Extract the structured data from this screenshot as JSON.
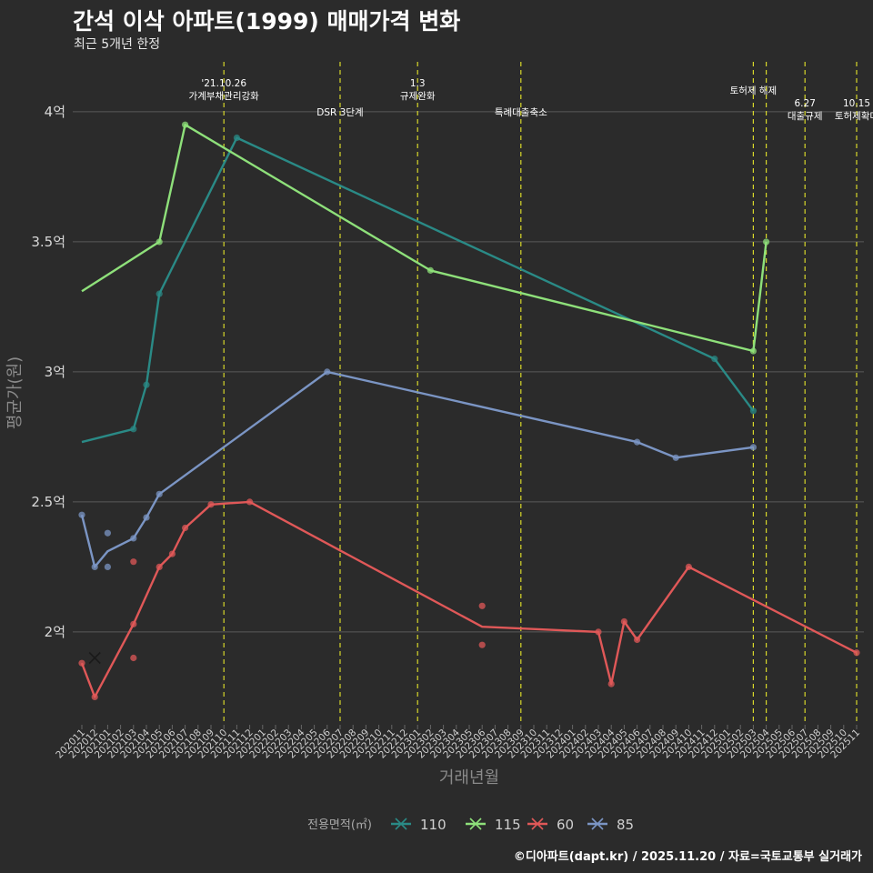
{
  "header": {
    "title": "간석 이삭 아파트(1999) 매매가격 변화",
    "subtitle": "최근 5개년 한정",
    "credit": "©디아파트(dapt.kr) / 2025.11.20 / 자료=국토교통부 실거래가"
  },
  "chart_data": {
    "type": "line",
    "title": "간석 이삭 아파트(1999) 매매가격 변화",
    "subtitle": "최근 5개년 한정",
    "xlabel": "거래년월",
    "ylabel": "평균가(원)",
    "ylim": [
      1.65,
      4.22
    ],
    "y_ticks": [
      {
        "value": 2.0,
        "label": "2억"
      },
      {
        "value": 2.5,
        "label": "2.5억"
      },
      {
        "value": 3.0,
        "label": "3억"
      },
      {
        "value": 3.5,
        "label": "3.5억"
      },
      {
        "value": 4.0,
        "label": "4억"
      }
    ],
    "x_start": "202011",
    "x_count": 61,
    "x_tick_labels": [
      "202011",
      "202012",
      "202101",
      "202102",
      "202103",
      "202104",
      "202105",
      "202106",
      "202107",
      "202108",
      "202109",
      "202110",
      "202111",
      "202112",
      "202201",
      "202202",
      "202203",
      "202204",
      "202205",
      "202206",
      "202207",
      "202208",
      "202209",
      "202210",
      "202211",
      "202212",
      "202301",
      "202302",
      "202303",
      "202304",
      "202305",
      "202306",
      "202307",
      "202308",
      "202309",
      "202310",
      "202311",
      "202312",
      "202401",
      "202402",
      "202403",
      "202404",
      "202405",
      "202406",
      "202407",
      "202408",
      "202409",
      "202410",
      "202411",
      "202412",
      "202501",
      "202502",
      "202503",
      "202504",
      "202505",
      "202506",
      "202507",
      "202508",
      "202509",
      "202510",
      "202511"
    ],
    "legend": {
      "title": "전용면적(㎡)",
      "position": "bottom",
      "items": [
        {
          "name": "110",
          "color": "#2a8a86"
        },
        {
          "name": "115",
          "color": "#8ee07a"
        },
        {
          "name": "60",
          "color": "#e05858"
        },
        {
          "name": "85",
          "color": "#7b95c4"
        }
      ]
    },
    "series": [
      {
        "name": "110",
        "color": "#2a8a86",
        "line": [
          [
            0,
            2.73
          ],
          [
            4,
            2.78
          ],
          [
            5,
            2.95
          ],
          [
            6,
            3.3
          ],
          [
            12,
            3.9
          ],
          [
            49,
            3.05
          ],
          [
            52,
            2.85
          ]
        ],
        "points": [
          [
            4,
            2.78
          ],
          [
            5,
            2.95
          ],
          [
            6,
            3.3
          ],
          [
            12,
            3.9
          ],
          [
            49,
            3.05
          ],
          [
            52,
            2.85
          ]
        ]
      },
      {
        "name": "115",
        "color": "#8ee07a",
        "line": [
          [
            0,
            3.31
          ],
          [
            6,
            3.5
          ],
          [
            8,
            3.95
          ],
          [
            27,
            3.39
          ],
          [
            52,
            3.08
          ],
          [
            53,
            3.5
          ]
        ],
        "points": [
          [
            6,
            3.5
          ],
          [
            8,
            3.95
          ],
          [
            27,
            3.39
          ],
          [
            52,
            3.08
          ],
          [
            53,
            3.5
          ]
        ]
      },
      {
        "name": "60",
        "color": "#e05858",
        "line": [
          [
            0,
            1.88
          ],
          [
            1,
            1.75
          ],
          [
            4,
            2.03
          ],
          [
            6,
            2.25
          ],
          [
            7,
            2.3
          ],
          [
            8,
            2.4
          ],
          [
            10,
            2.49
          ],
          [
            13,
            2.5
          ],
          [
            31,
            2.02
          ],
          [
            40,
            2.0
          ],
          [
            41,
            1.8
          ],
          [
            42,
            2.04
          ],
          [
            43,
            1.97
          ],
          [
            47,
            2.25
          ],
          [
            60,
            1.92
          ]
        ],
        "points": [
          [
            0,
            1.88
          ],
          [
            1,
            1.75
          ],
          [
            4,
            2.03
          ],
          [
            4,
            1.9
          ],
          [
            4,
            2.27
          ],
          [
            6,
            2.25
          ],
          [
            7,
            2.3
          ],
          [
            8,
            2.4
          ],
          [
            10,
            2.49
          ],
          [
            13,
            2.5
          ],
          [
            31,
            2.1
          ],
          [
            31,
            1.95
          ],
          [
            40,
            2.0
          ],
          [
            41,
            1.8
          ],
          [
            42,
            2.04
          ],
          [
            43,
            1.97
          ],
          [
            47,
            2.25
          ],
          [
            60,
            1.92
          ]
        ],
        "marked": [
          [
            1,
            1.9
          ]
        ]
      },
      {
        "name": "85",
        "color": "#7b95c4",
        "line": [
          [
            0,
            2.45
          ],
          [
            1,
            2.25
          ],
          [
            2,
            2.31
          ],
          [
            4,
            2.36
          ],
          [
            5,
            2.44
          ],
          [
            6,
            2.53
          ],
          [
            19,
            3.0
          ],
          [
            43,
            2.73
          ],
          [
            46,
            2.67
          ],
          [
            52,
            2.71
          ]
        ],
        "points": [
          [
            0,
            2.45
          ],
          [
            1,
            2.25
          ],
          [
            2,
            2.38
          ],
          [
            2,
            2.25
          ],
          [
            4,
            2.36
          ],
          [
            5,
            2.44
          ],
          [
            6,
            2.53
          ],
          [
            19,
            3.0
          ],
          [
            43,
            2.73
          ],
          [
            46,
            2.67
          ],
          [
            52,
            2.71
          ]
        ]
      }
    ],
    "events": [
      {
        "x": 11,
        "lines": [
          "'21.10.26",
          "가계부채관리강화"
        ],
        "level": 0
      },
      {
        "x": 20,
        "lines": [
          "DSR 3단계"
        ],
        "level": 1
      },
      {
        "x": 26,
        "lines": [
          "1.3",
          "규제완화"
        ],
        "level": 0
      },
      {
        "x": 34,
        "lines": [
          "특례대출축소"
        ],
        "level": 1
      },
      {
        "x": 52,
        "lines": [
          "토허제 해제"
        ],
        "level": 3
      },
      {
        "x": 53,
        "lines": [],
        "level": 3
      },
      {
        "x": 56,
        "lines": [
          "6.27",
          "대출규제"
        ],
        "level": 2
      },
      {
        "x": 60,
        "lines": [
          "10.15",
          "토허제확대"
        ],
        "level": 2
      }
    ]
  }
}
